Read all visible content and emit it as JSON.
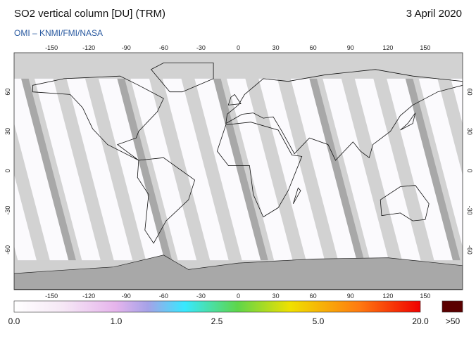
{
  "header": {
    "title": "SO2 vertical column [DU] (TRM)",
    "subtitle": "OMI  –  KNMI/FMI/NASA",
    "date": "3 April 2020"
  },
  "map": {
    "lon_ticks": [
      -150,
      -120,
      -90,
      -60,
      -30,
      0,
      30,
      60,
      90,
      120,
      150
    ],
    "lat_ticks": [
      60,
      30,
      0,
      -30,
      -60
    ]
  },
  "colorbar": {
    "labels": [
      "0.0",
      "1.0",
      "2.5",
      "5.0",
      "20.0",
      ">50"
    ]
  }
}
